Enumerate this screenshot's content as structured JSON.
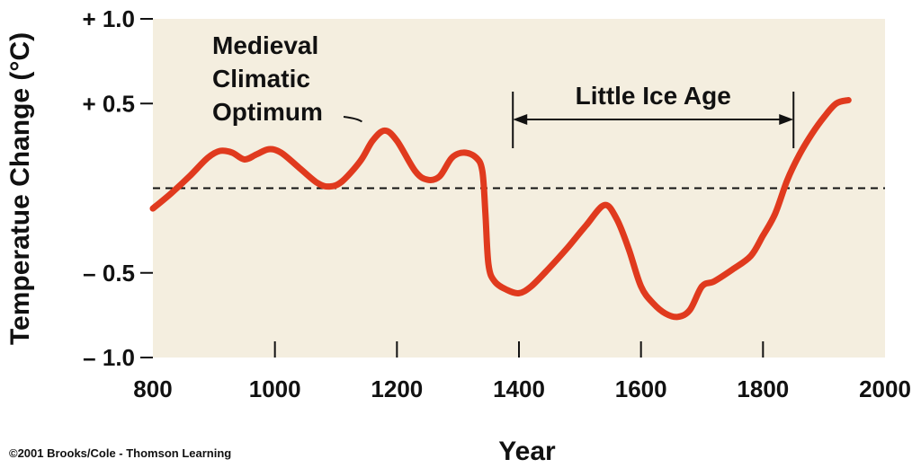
{
  "chart_data": {
    "type": "line",
    "xlabel": "Year",
    "ylabel": "Temperatue Change (°C)",
    "xlim": [
      800,
      2000
    ],
    "ylim": [
      -1.0,
      1.0
    ],
    "x_ticks": [
      "800",
      "1000",
      "1200",
      "1400",
      "1600",
      "1800",
      "2000"
    ],
    "y_ticks": [
      {
        "value": 1.0,
        "label": "+ 1.0"
      },
      {
        "value": 0.5,
        "label": "+ 0.5"
      },
      {
        "value": -0.5,
        "label": "– 0.5"
      },
      {
        "value": -1.0,
        "label": "– 1.0"
      }
    ],
    "reference_line": 0,
    "background_color": "#f4eedf",
    "line_color": "#e03a1e",
    "grid": false,
    "series": [
      {
        "x": [
          800,
          830,
          860,
          890,
          910,
          930,
          950,
          970,
          990,
          1010,
          1040,
          1070,
          1090,
          1110,
          1140,
          1160,
          1180,
          1200,
          1230,
          1250,
          1270,
          1290,
          1310,
          1330,
          1340,
          1345,
          1350,
          1360,
          1380,
          1400,
          1420,
          1450,
          1480,
          1510,
          1540,
          1560,
          1580,
          1600,
          1620,
          1640,
          1660,
          1680,
          1700,
          1720,
          1750,
          1780,
          1800,
          1820,
          1840,
          1860,
          1880,
          1900,
          1920,
          1940
        ],
        "y": [
          -0.12,
          -0.03,
          0.07,
          0.18,
          0.22,
          0.21,
          0.17,
          0.2,
          0.23,
          0.21,
          0.12,
          0.03,
          0.01,
          0.04,
          0.16,
          0.28,
          0.34,
          0.28,
          0.1,
          0.05,
          0.07,
          0.18,
          0.21,
          0.18,
          0.1,
          -0.15,
          -0.45,
          -0.55,
          -0.6,
          -0.62,
          -0.58,
          -0.47,
          -0.35,
          -0.22,
          -0.1,
          -0.18,
          -0.36,
          -0.58,
          -0.68,
          -0.74,
          -0.76,
          -0.72,
          -0.58,
          -0.55,
          -0.48,
          -0.4,
          -0.28,
          -0.15,
          0.05,
          0.2,
          0.32,
          0.42,
          0.5,
          0.52
        ]
      }
    ],
    "annotations": [
      {
        "id": "medieval",
        "lines": [
          "Medieval",
          "Climatic",
          "Optimum"
        ],
        "points_to_year": 1175,
        "points_to_value": 0.35
      },
      {
        "id": "little-ice-age",
        "text": "Little Ice Age",
        "from": 1390,
        "to": 1850
      }
    ]
  },
  "credit": "©2001 Brooks/Cole - Thomson Learning"
}
